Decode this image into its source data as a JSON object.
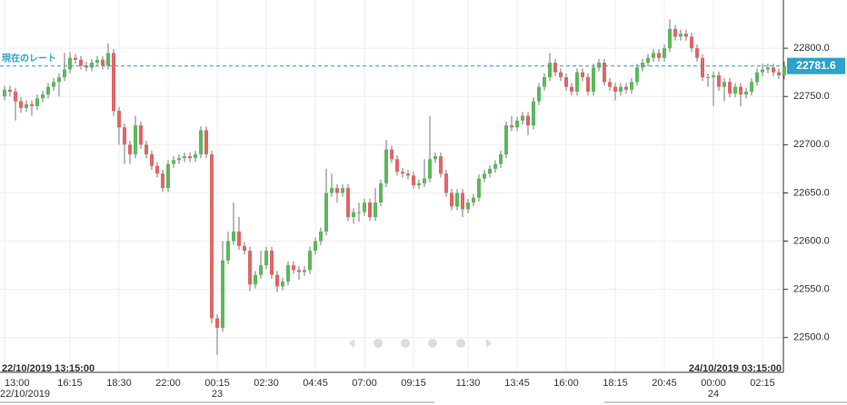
{
  "chart_data": {
    "type": "candlestick",
    "categories": [
      "13:00",
      null,
      null,
      null,
      null,
      null,
      null,
      null,
      null,
      null,
      null,
      null,
      "16:15",
      null,
      null,
      null,
      null,
      null,
      null,
      null,
      null,
      "18:30",
      null,
      null,
      null,
      null,
      null,
      null,
      null,
      null,
      "22:00",
      null,
      null,
      null,
      null,
      null,
      null,
      null,
      null,
      "00:15",
      null,
      null,
      null,
      null,
      null,
      null,
      null,
      null,
      "02:30",
      null,
      null,
      null,
      null,
      null,
      null,
      null,
      null,
      "04:45",
      null,
      null,
      null,
      null,
      null,
      null,
      null,
      null,
      "07:00",
      null,
      null,
      null,
      null,
      null,
      null,
      null,
      null,
      "09:15",
      null,
      null,
      null,
      null,
      null,
      null,
      null,
      null,
      null,
      "11:30",
      null,
      null,
      null,
      null,
      null,
      null,
      null,
      null,
      "13:45",
      null,
      null,
      null,
      null,
      null,
      null,
      null,
      null,
      "16:00",
      null,
      null,
      null,
      null,
      null,
      null,
      null,
      null,
      "18:15",
      null,
      null,
      null,
      null,
      null,
      null,
      null,
      null,
      "20:45",
      null,
      null,
      null,
      null,
      null,
      null,
      null,
      null,
      "00:00",
      null,
      null,
      null,
      null,
      null,
      null,
      null,
      null,
      "02:15",
      null,
      null,
      null,
      null
    ],
    "dates": [
      "22/10/2019",
      null,
      null,
      null,
      null,
      null,
      null,
      null,
      null,
      null,
      null,
      null,
      null,
      null,
      null,
      null,
      null,
      null,
      null,
      null,
      null,
      null,
      null,
      null,
      null,
      null,
      null,
      null,
      null,
      null,
      null,
      null,
      null,
      null,
      null,
      null,
      null,
      null,
      null,
      "23",
      null,
      null,
      null,
      null,
      null,
      null,
      null,
      null,
      null,
      null,
      null,
      null,
      null,
      null,
      null,
      null,
      null,
      null,
      null,
      null,
      null,
      null,
      null,
      null,
      null,
      null,
      null,
      null,
      null,
      null,
      null,
      null,
      null,
      null,
      null,
      null,
      null,
      null,
      null,
      null,
      null,
      null,
      null,
      null,
      null,
      null,
      null,
      null,
      null,
      null,
      null,
      null,
      null,
      null,
      null,
      null,
      null,
      null,
      null,
      null,
      null,
      null,
      null,
      null,
      null,
      null,
      null,
      null,
      null,
      null,
      null,
      null,
      null,
      null,
      null,
      null,
      null,
      null,
      null,
      null,
      null,
      null,
      null,
      null,
      null,
      null,
      null,
      null,
      null,
      null,
      "24",
      null,
      null,
      null,
      null,
      null,
      null,
      null,
      null,
      null,
      null,
      null,
      null,
      null
    ],
    "open": [
      22750,
      22757,
      22755,
      22745,
      22738,
      22742,
      22740,
      22748,
      22752,
      22760,
      22765,
      22770,
      22778,
      22790,
      22788,
      22782,
      22780,
      22785,
      22788,
      22782,
      22795,
      22735,
      22718,
      22700,
      22690,
      22720,
      22700,
      22690,
      22678,
      22670,
      22655,
      22680,
      22684,
      22686,
      22688,
      22686,
      22690,
      22715,
      22690,
      22520,
      22510,
      22580,
      22600,
      22610,
      22595,
      22590,
      22555,
      22565,
      22575,
      22590,
      22565,
      22553,
      22558,
      22575,
      22570,
      22568,
      22570,
      22590,
      22600,
      22610,
      22650,
      22655,
      22650,
      22655,
      22625,
      22630,
      22630,
      22640,
      22625,
      22640,
      22660,
      22695,
      22685,
      22672,
      22670,
      22668,
      22658,
      22660,
      22665,
      22685,
      22688,
      22670,
      22650,
      22636,
      22650,
      22633,
      22640,
      22645,
      22665,
      22670,
      22675,
      22680,
      22690,
      22720,
      22718,
      22725,
      22730,
      22720,
      22745,
      22760,
      22770,
      22785,
      22775,
      22770,
      22760,
      22755,
      22775,
      22770,
      22755,
      22780,
      22785,
      22765,
      22760,
      22755,
      22760,
      22757,
      22765,
      22780,
      22785,
      22790,
      22795,
      22790,
      22800,
      22820,
      22812,
      22815,
      22812,
      22800,
      22790,
      22770,
      22770,
      22772,
      22760,
      22765,
      22753,
      22760,
      22752,
      22755,
      22765,
      22775,
      22778,
      22780,
      22775,
      22772
    ],
    "high": [
      22761,
      22761,
      22759,
      22749,
      22746,
      22746,
      22752,
      22756,
      22764,
      22769,
      22774,
      22795,
      22796,
      22794,
      22792,
      22786,
      22789,
      22792,
      22792,
      22805,
      22799,
      22739,
      22722,
      22704,
      22730,
      22724,
      22704,
      22694,
      22682,
      22674,
      22684,
      22688,
      22690,
      22692,
      22692,
      22694,
      22719,
      22719,
      22694,
      22524,
      22600,
      22610,
      22640,
      22625,
      22599,
      22594,
      22569,
      22590,
      22594,
      22594,
      22569,
      22562,
      22579,
      22579,
      22574,
      22574,
      22594,
      22604,
      22614,
      22675,
      22670,
      22659,
      22659,
      22659,
      22634,
      22640,
      22644,
      22644,
      22655,
      22664,
      22705,
      22699,
      22689,
      22676,
      22674,
      22672,
      22664,
      22685,
      22730,
      22692,
      22692,
      22674,
      22654,
      22654,
      22654,
      22644,
      22649,
      22669,
      22674,
      22679,
      22684,
      22694,
      22724,
      22730,
      22729,
      22734,
      22734,
      22749,
      22764,
      22774,
      22795,
      22789,
      22779,
      22774,
      22764,
      22779,
      22779,
      22774,
      22784,
      22789,
      22789,
      22769,
      22764,
      22764,
      22764,
      22769,
      22784,
      22789,
      22794,
      22799,
      22799,
      22804,
      22830,
      22824,
      22819,
      22819,
      22816,
      22804,
      22794,
      22774,
      22776,
      22776,
      22769,
      22769,
      22764,
      22764,
      22759,
      22769,
      22779,
      22784,
      22784,
      22784,
      22779,
      22786
    ],
    "low": [
      22746,
      22750,
      22725,
      22733,
      22734,
      22730,
      22736,
      22744,
      22748,
      22756,
      22750,
      22766,
      22774,
      22784,
      22778,
      22776,
      22776,
      22781,
      22778,
      22778,
      22730,
      22700,
      22680,
      22680,
      22686,
      22696,
      22686,
      22674,
      22666,
      22651,
      22651,
      22676,
      22680,
      22682,
      22682,
      22682,
      22686,
      22686,
      22515,
      22482,
      22506,
      22576,
      22596,
      22591,
      22586,
      22548,
      22551,
      22561,
      22571,
      22561,
      22547,
      22549,
      22554,
      22566,
      22560,
      22564,
      22566,
      22586,
      22596,
      22606,
      22646,
      22640,
      22646,
      22621,
      22618,
      22620,
      22626,
      22621,
      22621,
      22636,
      22656,
      22681,
      22668,
      22666,
      22664,
      22654,
      22654,
      22656,
      22661,
      22681,
      22666,
      22646,
      22632,
      22632,
      22625,
      22629,
      22636,
      22641,
      22661,
      22666,
      22671,
      22676,
      22686,
      22714,
      22714,
      22721,
      22710,
      22716,
      22741,
      22756,
      22766,
      22771,
      22766,
      22756,
      22751,
      22751,
      22766,
      22751,
      22751,
      22776,
      22761,
      22756,
      22746,
      22751,
      22753,
      22753,
      22761,
      22776,
      22781,
      22786,
      22786,
      22786,
      22796,
      22808,
      22808,
      22808,
      22796,
      22786,
      22766,
      22760,
      22740,
      22756,
      22745,
      22749,
      22749,
      22740,
      22748,
      22751,
      22761,
      22771,
      22774,
      22771,
      22768,
      22768
    ],
    "close": [
      22757,
      22755,
      22745,
      22738,
      22742,
      22740,
      22748,
      22752,
      22760,
      22765,
      22770,
      22778,
      22790,
      22788,
      22782,
      22780,
      22785,
      22788,
      22782,
      22795,
      22735,
      22718,
      22700,
      22690,
      22720,
      22700,
      22690,
      22678,
      22670,
      22655,
      22680,
      22684,
      22686,
      22688,
      22686,
      22690,
      22715,
      22690,
      22520,
      22510,
      22580,
      22600,
      22610,
      22595,
      22590,
      22555,
      22565,
      22575,
      22590,
      22565,
      22553,
      22558,
      22575,
      22570,
      22568,
      22570,
      22590,
      22600,
      22610,
      22650,
      22655,
      22650,
      22655,
      22625,
      22630,
      22630,
      22640,
      22625,
      22640,
      22660,
      22695,
      22685,
      22672,
      22670,
      22668,
      22658,
      22660,
      22665,
      22685,
      22688,
      22670,
      22650,
      22636,
      22650,
      22633,
      22640,
      22645,
      22665,
      22670,
      22675,
      22680,
      22690,
      22720,
      22718,
      22725,
      22730,
      22720,
      22745,
      22760,
      22770,
      22785,
      22775,
      22770,
      22760,
      22755,
      22775,
      22770,
      22755,
      22780,
      22785,
      22765,
      22760,
      22755,
      22760,
      22757,
      22765,
      22780,
      22785,
      22790,
      22795,
      22790,
      22800,
      22820,
      22812,
      22815,
      22812,
      22800,
      22790,
      22770,
      22770,
      22772,
      22760,
      22765,
      22753,
      22760,
      22752,
      22755,
      22765,
      22775,
      22778,
      22780,
      22775,
      22772,
      22781.6
    ],
    "up_color": "#5cb85c",
    "down_color": "#e06666",
    "ylim": [
      22464,
      22850
    ],
    "yticks": [
      {
        "value": 22500,
        "label": "22500.0"
      },
      {
        "value": 22550,
        "label": "22550.0"
      },
      {
        "value": 22600,
        "label": "22600.0"
      },
      {
        "value": 22650,
        "label": "22650.0"
      },
      {
        "value": 22700,
        "label": "22700.0"
      },
      {
        "value": 22750,
        "label": "22750.0"
      },
      {
        "value": 22800,
        "label": "22800.0"
      }
    ],
    "grid": true,
    "current_rate": {
      "label": "現在のレート",
      "value": 22781.6,
      "color": "#2ba3cc"
    },
    "start_time": "22/10/2019 13:15:00",
    "end_time": "24/10/2019 03:15:00"
  }
}
